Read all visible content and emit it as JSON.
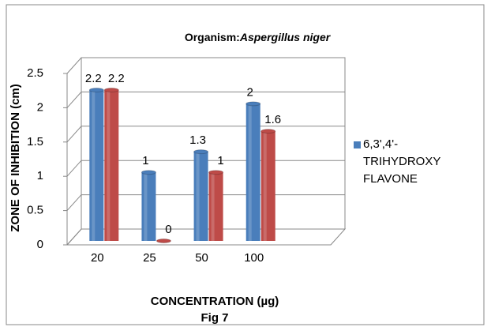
{
  "chart_data": {
    "type": "bar",
    "title": [
      "Organism:",
      "Aspergillus niger"
    ],
    "x_label": "CONCENTRATION (µg)",
    "y_label": "ZONE OF INHIBITION (cm)",
    "caption": "Fig 7",
    "categories": [
      "20",
      "25",
      "50",
      "100"
    ],
    "series": [
      {
        "name": "6,3',4'-TRIHYDROXY FLAVONE",
        "color": "#4a7ebb",
        "values": [
          2.2,
          1,
          1.3,
          2
        ]
      },
      {
        "color": "#be4b48",
        "values": [
          2.2,
          0,
          1,
          1.6
        ]
      }
    ],
    "ylim": [
      0,
      2.5
    ],
    "yticks": [
      0,
      0.5,
      1,
      1.5,
      2,
      2.5
    ],
    "grid": true,
    "legend": "right"
  }
}
